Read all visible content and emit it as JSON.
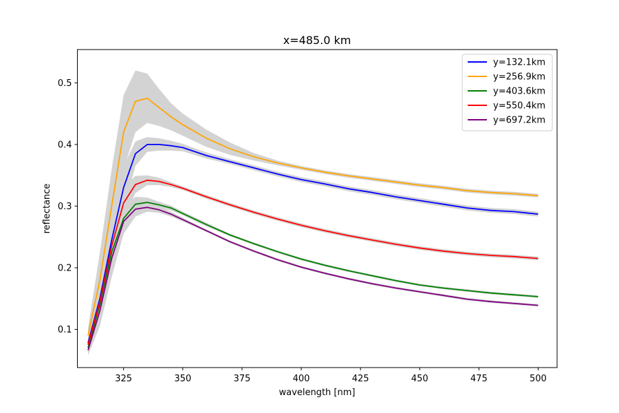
{
  "chart_data": {
    "type": "line",
    "title": "x=485.0 km",
    "xlabel": "wavelength [nm]",
    "ylabel": "reflectance",
    "xlim": [
      305.5,
      508
    ],
    "ylim": [
      0.038,
      0.554
    ],
    "xticks": [
      325,
      350,
      375,
      400,
      425,
      450,
      475,
      500
    ],
    "yticks": [
      0.1,
      0.2,
      0.3,
      0.4,
      0.5
    ],
    "xtick_labels": [
      "325",
      "350",
      "375",
      "400",
      "425",
      "450",
      "475",
      "500"
    ],
    "ytick_labels": [
      "0.1",
      "0.2",
      "0.3",
      "0.4",
      "0.5"
    ],
    "legend_position": "top-right",
    "grid": false,
    "uncertainty_band_color": "#d3d3d3",
    "series": [
      {
        "name": "y=132.1km",
        "color": "#0000ff",
        "x": [
          310,
          315,
          320,
          325,
          330,
          335,
          340,
          345,
          350,
          360,
          370,
          380,
          390,
          400,
          410,
          420,
          430,
          440,
          450,
          460,
          470,
          480,
          490,
          500
        ],
        "values": [
          0.078,
          0.15,
          0.245,
          0.33,
          0.385,
          0.4,
          0.4,
          0.398,
          0.395,
          0.382,
          0.372,
          0.362,
          0.352,
          0.343,
          0.336,
          0.328,
          0.322,
          0.315,
          0.309,
          0.303,
          0.297,
          0.293,
          0.291,
          0.287
        ],
        "band_halfwidth": [
          0.01,
          0.03,
          0.04,
          0.035,
          0.02,
          0.012,
          0.01,
          0.008,
          0.006,
          0.005,
          0.004,
          0.004,
          0.004,
          0.004,
          0.004,
          0.004,
          0.004,
          0.004,
          0.004,
          0.004,
          0.004,
          0.004,
          0.004,
          0.004
        ]
      },
      {
        "name": "y=256.9km",
        "color": "#ffa500",
        "x": [
          310,
          315,
          320,
          325,
          330,
          335,
          340,
          345,
          350,
          360,
          370,
          380,
          390,
          400,
          410,
          420,
          430,
          440,
          450,
          460,
          470,
          480,
          490,
          500
        ],
        "values": [
          0.09,
          0.18,
          0.3,
          0.42,
          0.47,
          0.475,
          0.46,
          0.445,
          0.432,
          0.41,
          0.393,
          0.38,
          0.37,
          0.362,
          0.355,
          0.349,
          0.344,
          0.339,
          0.334,
          0.33,
          0.325,
          0.322,
          0.32,
          0.317
        ],
        "band_halfwidth": [
          0.012,
          0.045,
          0.06,
          0.06,
          0.05,
          0.04,
          0.03,
          0.022,
          0.018,
          0.014,
          0.01,
          0.006,
          0.004,
          0.003,
          0.003,
          0.003,
          0.003,
          0.003,
          0.003,
          0.003,
          0.003,
          0.003,
          0.003,
          0.003
        ]
      },
      {
        "name": "y=403.6km",
        "color": "#008000",
        "x": [
          310,
          315,
          320,
          325,
          330,
          335,
          340,
          345,
          350,
          360,
          370,
          380,
          390,
          400,
          410,
          420,
          430,
          440,
          450,
          460,
          470,
          480,
          490,
          500
        ],
        "values": [
          0.07,
          0.14,
          0.225,
          0.28,
          0.303,
          0.306,
          0.302,
          0.297,
          0.288,
          0.27,
          0.253,
          0.239,
          0.226,
          0.214,
          0.204,
          0.195,
          0.187,
          0.179,
          0.172,
          0.167,
          0.163,
          0.159,
          0.156,
          0.153
        ],
        "band_halfwidth": [
          0.008,
          0.025,
          0.03,
          0.02,
          0.012,
          0.008,
          0.005,
          0.004,
          0.003,
          0.003,
          0.002,
          0.002,
          0.002,
          0.002,
          0.002,
          0.002,
          0.002,
          0.002,
          0.002,
          0.002,
          0.002,
          0.002,
          0.002,
          0.002
        ]
      },
      {
        "name": "y=550.4km",
        "color": "#ff0000",
        "x": [
          310,
          315,
          320,
          325,
          330,
          335,
          340,
          345,
          350,
          360,
          370,
          380,
          390,
          400,
          410,
          420,
          430,
          440,
          450,
          460,
          470,
          480,
          490,
          500
        ],
        "values": [
          0.075,
          0.145,
          0.235,
          0.305,
          0.335,
          0.342,
          0.34,
          0.335,
          0.329,
          0.315,
          0.302,
          0.29,
          0.279,
          0.269,
          0.26,
          0.252,
          0.245,
          0.238,
          0.232,
          0.227,
          0.223,
          0.22,
          0.218,
          0.215
        ],
        "band_halfwidth": [
          0.008,
          0.025,
          0.035,
          0.025,
          0.014,
          0.008,
          0.006,
          0.004,
          0.003,
          0.003,
          0.003,
          0.003,
          0.003,
          0.003,
          0.003,
          0.003,
          0.003,
          0.003,
          0.003,
          0.003,
          0.003,
          0.003,
          0.003,
          0.003
        ]
      },
      {
        "name": "y=697.2km",
        "color": "#800080",
        "x": [
          310,
          315,
          320,
          325,
          330,
          335,
          340,
          345,
          350,
          360,
          370,
          380,
          390,
          400,
          410,
          420,
          430,
          440,
          450,
          460,
          470,
          480,
          490,
          500
        ],
        "values": [
          0.066,
          0.13,
          0.215,
          0.275,
          0.295,
          0.298,
          0.294,
          0.287,
          0.278,
          0.26,
          0.242,
          0.227,
          0.213,
          0.201,
          0.191,
          0.182,
          0.174,
          0.167,
          0.161,
          0.155,
          0.149,
          0.145,
          0.142,
          0.139
        ],
        "band_halfwidth": [
          0.008,
          0.025,
          0.03,
          0.02,
          0.012,
          0.007,
          0.005,
          0.004,
          0.003,
          0.002,
          0.002,
          0.002,
          0.002,
          0.002,
          0.002,
          0.002,
          0.002,
          0.002,
          0.002,
          0.002,
          0.002,
          0.002,
          0.002,
          0.002
        ]
      }
    ]
  }
}
